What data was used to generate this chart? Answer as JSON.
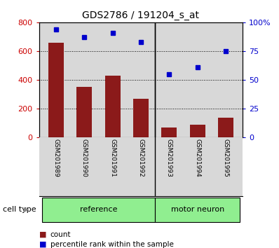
{
  "title": "GDS2786 / 191204_s_at",
  "samples": [
    "GSM201989",
    "GSM201990",
    "GSM201991",
    "GSM201992",
    "GSM201993",
    "GSM201994",
    "GSM201995"
  ],
  "counts": [
    660,
    350,
    430,
    270,
    70,
    90,
    140
  ],
  "percentile_ranks": [
    94,
    87,
    91,
    83,
    55,
    61,
    75
  ],
  "bar_color": "#8B1A1A",
  "dot_color": "#0000CC",
  "left_yticks": [
    0,
    200,
    400,
    600,
    800
  ],
  "right_yticks": [
    0,
    25,
    50,
    75,
    100
  ],
  "right_yticklabels": [
    "0",
    "25",
    "50",
    "75",
    "100%"
  ],
  "ylim_left": [
    0,
    800
  ],
  "ylim_right": [
    0,
    100
  ],
  "background_color": "#ffffff",
  "plot_bg_color": "#d8d8d8",
  "legend_count_label": "count",
  "legend_pct_label": "percentile rank within the sample",
  "cell_type_label": "cell type",
  "reference_label": "reference",
  "motor_neuron_label": "motor neuron",
  "group_boundary": 3.5,
  "light_green": "#90EE90",
  "left_tick_color": "#CC0000",
  "right_tick_color": "#0000CC"
}
